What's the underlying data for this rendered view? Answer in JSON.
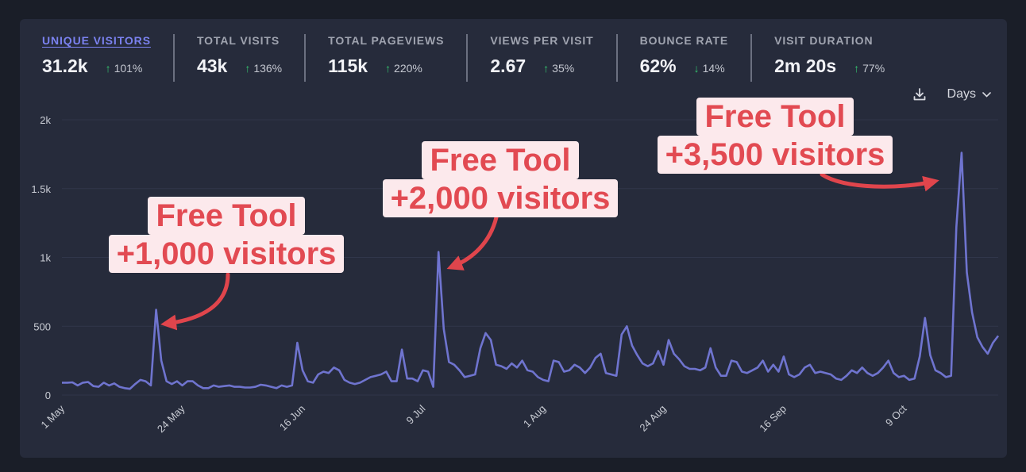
{
  "metrics": [
    {
      "label": "UNIQUE VISITORS",
      "value": "31.2k",
      "change": "101%",
      "direction": "up",
      "active": true
    },
    {
      "label": "TOTAL VISITS",
      "value": "43k",
      "change": "136%",
      "direction": "up"
    },
    {
      "label": "TOTAL PAGEVIEWS",
      "value": "115k",
      "change": "220%",
      "direction": "up"
    },
    {
      "label": "VIEWS PER VISIT",
      "value": "2.67",
      "change": "35%",
      "direction": "up"
    },
    {
      "label": "BOUNCE RATE",
      "value": "62%",
      "change": "14%",
      "direction": "down"
    },
    {
      "label": "VISIT DURATION",
      "value": "2m 20s",
      "change": "77%",
      "direction": "up"
    }
  ],
  "toolbar": {
    "interval_label": "Days",
    "download_icon": "download-icon",
    "chevron_icon": "chevron-down-icon"
  },
  "annotations": [
    {
      "line1": "Free Tool",
      "line2": "+1,000 visitors"
    },
    {
      "line1": "Free Tool",
      "line2": "+2,000 visitors"
    },
    {
      "line1": "Free Tool",
      "line2": "+3,500 visitors"
    }
  ],
  "colors": {
    "line": "#6f74cf",
    "arrow": "#e0454c",
    "callout_bg": "#fce9ec",
    "callout_text": "#e24a52",
    "up": "#35c46f"
  },
  "chart_data": {
    "type": "line",
    "start_date": "1 May",
    "ylim": [
      0,
      2000
    ],
    "yticks": [
      0,
      500,
      1000,
      1500,
      2000
    ],
    "ytick_labels": [
      "0",
      "500",
      "1k",
      "1.5k",
      "2k"
    ],
    "grid": true,
    "xtick_labels": [
      "1 May",
      "24 May",
      "16 Jun",
      "9 Jul",
      "1 Aug",
      "24 Aug",
      "16 Sep",
      "9 Oct"
    ],
    "xtick_index": [
      0,
      23,
      46,
      69,
      92,
      115,
      138,
      161
    ],
    "series": [
      {
        "name": "Unique visitors",
        "values": [
          90,
          90,
          92,
          70,
          90,
          95,
          65,
          60,
          90,
          70,
          85,
          60,
          50,
          45,
          80,
          110,
          100,
          70,
          620,
          250,
          100,
          80,
          100,
          70,
          100,
          100,
          70,
          50,
          50,
          70,
          60,
          65,
          70,
          60,
          60,
          55,
          55,
          60,
          75,
          70,
          60,
          50,
          70,
          60,
          70,
          380,
          180,
          100,
          90,
          150,
          170,
          160,
          200,
          180,
          110,
          90,
          80,
          90,
          110,
          130,
          140,
          150,
          170,
          100,
          100,
          330,
          120,
          120,
          100,
          180,
          170,
          60,
          1040,
          480,
          240,
          220,
          180,
          130,
          140,
          150,
          340,
          450,
          400,
          220,
          210,
          190,
          230,
          200,
          250,
          180,
          170,
          130,
          110,
          100,
          250,
          240,
          170,
          180,
          220,
          200,
          160,
          200,
          270,
          300,
          160,
          150,
          140,
          440,
          500,
          360,
          290,
          230,
          210,
          230,
          320,
          220,
          400,
          300,
          260,
          210,
          190,
          190,
          180,
          200,
          340,
          200,
          140,
          140,
          250,
          240,
          170,
          160,
          180,
          200,
          250,
          170,
          220,
          170,
          280,
          150,
          130,
          150,
          200,
          220,
          160,
          170,
          160,
          150,
          120,
          110,
          140,
          180,
          160,
          200,
          160,
          140,
          160,
          200,
          250,
          160,
          130,
          140,
          110,
          120,
          280,
          560,
          290,
          180,
          160,
          130,
          140,
          1220,
          1760,
          890,
          600,
          420,
          350,
          300,
          380,
          430
        ]
      }
    ]
  }
}
